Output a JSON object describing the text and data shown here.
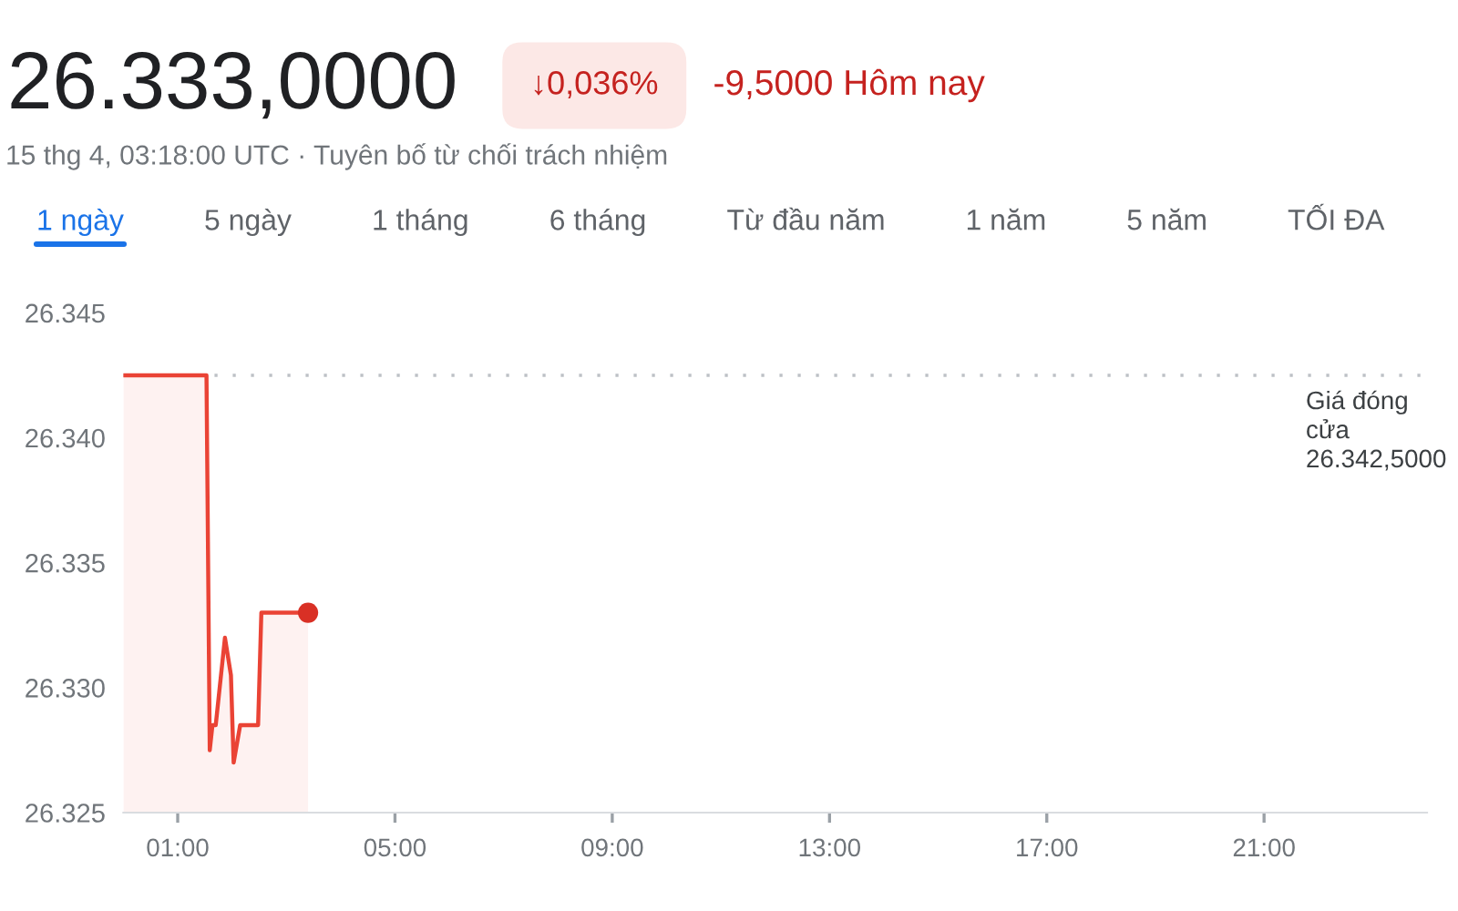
{
  "chart_data": {
    "type": "area",
    "title": "26.333,0000",
    "subtitle": "15 thg 4, 03:18:00 UTC · Tuyên bố từ chối trách nhiệm",
    "annotations": [
      "↓0,036%",
      "-9,5000 Hôm nay",
      "1 ngày",
      "5 ngày",
      "1 tháng",
      "6 tháng",
      "Từ đầu năm",
      "1 năm",
      "5 năm",
      "TỐI ĐA"
    ],
    "series": [
      {
        "color": "#ea4335",
        "marker": "none",
        "x": [
          0,
          1.53,
          1.59,
          1.64,
          1.7,
          1.87,
          1.98,
          2.03,
          2.15,
          2.48,
          2.54,
          3.4
        ],
        "values": [
          26342.5,
          26342.5,
          26327.5,
          26328.5,
          26328.5,
          26332,
          26330.5,
          26327,
          26328.5,
          26328.5,
          26333,
          26333
        ]
      },
      {
        "type": "scatter",
        "color": "#d93025",
        "marker": "circle",
        "x": [
          3.4
        ],
        "values": [
          26333
        ]
      }
    ],
    "line_style": "solid",
    "xlim": [
      0,
      24
    ],
    "xticks": [
      {
        "value": 1,
        "label": "01:00"
      },
      {
        "value": 5,
        "label": "05:00"
      },
      {
        "value": 9,
        "label": "09:00"
      },
      {
        "value": 13,
        "label": "13:00"
      },
      {
        "value": 17,
        "label": "17:00"
      },
      {
        "value": 21,
        "label": "21:00"
      }
    ],
    "ylim": [
      26325,
      26345
    ],
    "yticks": [
      {
        "value": 26325,
        "label": "26.325"
      },
      {
        "value": 26330,
        "label": "26.330"
      },
      {
        "value": 26335,
        "label": "26.335"
      },
      {
        "value": 26340,
        "label": "26.340"
      },
      {
        "value": 26345,
        "label": "26.345"
      }
    ],
    "ref_lines": [
      {
        "axis": "y",
        "value": 26342.5,
        "label": "Giá đóng\ncửa\n26.342,5000",
        "color": "#bdc1c6",
        "line_style": "dotted"
      }
    ]
  }
}
